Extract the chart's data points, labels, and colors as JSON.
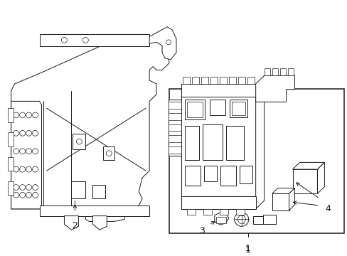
{
  "background_color": "#ffffff",
  "line_color": "#1a1a1a",
  "fig_width": 4.89,
  "fig_height": 3.6,
  "dpi": 100,
  "lw": 0.7,
  "lw_thick": 1.1
}
